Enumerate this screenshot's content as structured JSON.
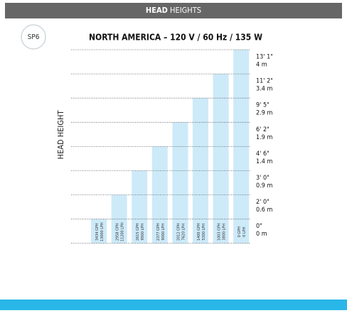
{
  "header": {
    "title_bold": "HEAD",
    "title_rest": "HEIGHTS"
  },
  "badge": "SP6",
  "title": "NORTH AMERICA – 120 V / 60 Hz / 135 W",
  "y_axis_label": "HEAD HEIGHT",
  "levels": [
    {
      "ft": "13' 1\"",
      "m": "4 m"
    },
    {
      "ft": "11' 2\"",
      "m": "3.4 m"
    },
    {
      "ft": "9' 5\"",
      "m": "2.9 m"
    },
    {
      "ft": "6' 2\"",
      "m": "1.9 m"
    },
    {
      "ft": "4' 6\"",
      "m": "1.4 m"
    },
    {
      "ft": "3' 0\"",
      "m": "0.9 m"
    },
    {
      "ft": "2' 0\"",
      "m": "0.6 m"
    },
    {
      "ft": "0\"",
      "m": "0 m"
    }
  ],
  "bars": [
    {
      "gph": "3434 GPH",
      "lph": "13000 LPH"
    },
    {
      "gph": "2958 GPH",
      "lph": "11200 LPH"
    },
    {
      "gph": "2615 GPH",
      "lph": "9900 LPH"
    },
    {
      "gph": "2377 GPH",
      "lph": "9000 LPH"
    },
    {
      "gph": "2012 GPH",
      "lph": "7620 LPH"
    },
    {
      "gph": "1400 GPH",
      "lph": "5300 LPH"
    },
    {
      "gph": "1003 GPH",
      "lph": "3800 LPH"
    },
    {
      "gph": "0 GPH",
      "lph": "0 LPH"
    }
  ]
}
